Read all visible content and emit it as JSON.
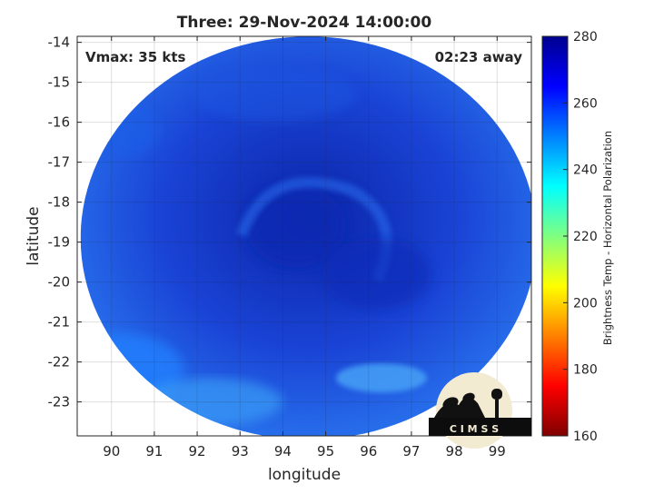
{
  "title": "Three: 29-Nov-2024 14:00:00",
  "annotations": {
    "vmax": "Vmax: 35 kts",
    "time_away": "02:23 away"
  },
  "logo": {
    "text": "C I M S S"
  },
  "colors": {
    "colormap": [
      "#7f0000",
      "#ff0000",
      "#ff8000",
      "#ffff00",
      "#80ff80",
      "#00ffff",
      "#0080ff",
      "#0000ff",
      "#00008f"
    ],
    "storm_core": "#0a2ab4",
    "outer_band": "#2080ff"
  },
  "chart_data": {
    "type": "heatmap",
    "title": "Three: 29-Nov-2024 14:00:00",
    "xlabel": "longitude",
    "ylabel": "latitude",
    "xlim": [
      89.2,
      99.8
    ],
    "ylim": [
      -23.85,
      -13.85
    ],
    "xticks": [
      90,
      91,
      92,
      93,
      94,
      95,
      96,
      97,
      98,
      99
    ],
    "yticks": [
      -14,
      -15,
      -16,
      -17,
      -18,
      -19,
      -20,
      -21,
      -22,
      -23
    ],
    "grid": true,
    "colorbar": {
      "label": "Brightness Temp - Horizontal Polarization",
      "range": [
        160,
        280
      ],
      "ticks": [
        160,
        180,
        200,
        220,
        240,
        260,
        280
      ]
    },
    "swath_center": {
      "lon": 94.6,
      "lat": -18.9
    },
    "storm_center": {
      "lon": 94.3,
      "lat": -18.6
    }
  }
}
